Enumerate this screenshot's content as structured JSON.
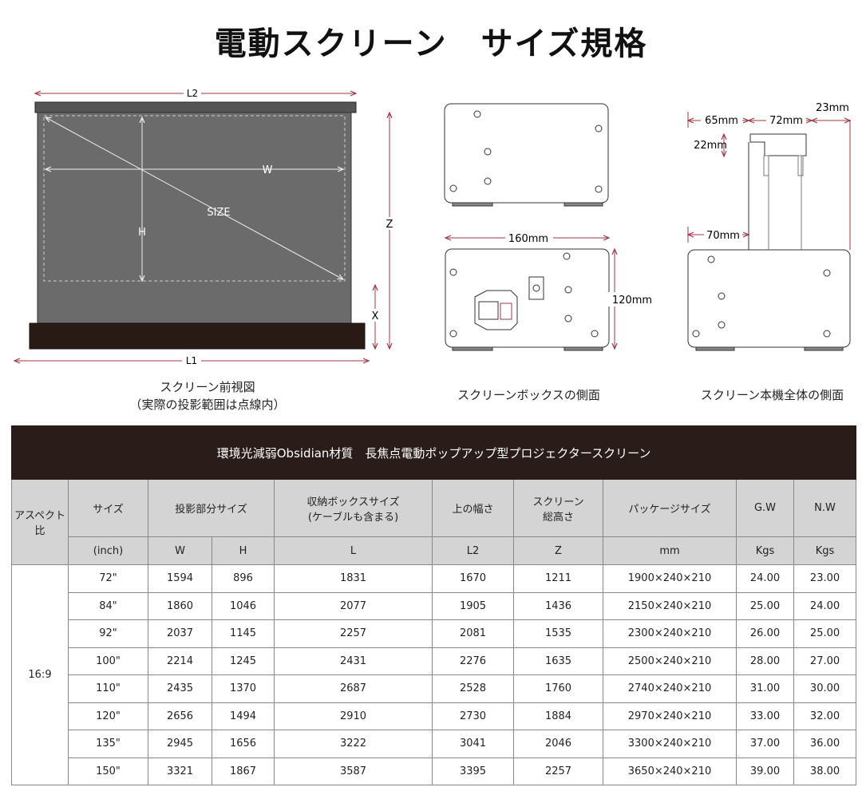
{
  "title": "電動スクリーン　サイズ規格",
  "front_view": {
    "labels": {
      "l2": "L2",
      "l1": "L1",
      "w": "W",
      "h": "H",
      "size": "SIZE",
      "z": "Z",
      "x": "X"
    },
    "caption_line1": "スクリーン前視図",
    "caption_line2": "（実際の投影範囲は点線内）"
  },
  "box_side": {
    "width_label": "160mm",
    "height_label": "120mm",
    "caption": "スクリーンボックスの側面"
  },
  "full_side": {
    "dim_65": "65mm",
    "dim_72": "72mm",
    "dim_23": "23mm",
    "dim_22": "22mm",
    "dim_70": "70mm",
    "caption": "スクリーン本機全体の側面"
  },
  "colors": {
    "dimension_line": "#a23a4a",
    "table_band": "#2a1c18",
    "header_bg": "#d4d4d4"
  },
  "table": {
    "band_title": "環境光減弱Obsidian材質　長焦点電動ポップアップ型プロジェクタースクリーン",
    "headers": {
      "aspect": "アスペクト比",
      "size": "サイズ",
      "projection": "投影部分サイズ",
      "box_line1": "収納ボックスサイズ",
      "box_line2": "(ケーブルも含まる)",
      "top_width": "上の幅さ",
      "height_line1": "スクリーン",
      "height_line2": "総高さ",
      "package": "パッケージサイズ",
      "gw": "G.W",
      "nw": "N.W"
    },
    "subheaders": [
      "(inch)",
      "W",
      "H",
      "L",
      "L2",
      "Z",
      "mm",
      "Kgs",
      "Kgs"
    ],
    "aspect_value": "16:9",
    "rows": [
      [
        "72\"",
        "1594",
        "896",
        "1831",
        "1670",
        "1211",
        "1900×240×210",
        "24.00",
        "23.00"
      ],
      [
        "84\"",
        "1860",
        "1046",
        "2077",
        "1905",
        "1436",
        "2150×240×210",
        "25.00",
        "24.00"
      ],
      [
        "92\"",
        "2037",
        "1145",
        "2257",
        "2081",
        "1535",
        "2300×240×210",
        "26.00",
        "25.00"
      ],
      [
        "100\"",
        "2214",
        "1245",
        "2431",
        "2276",
        "1635",
        "2500×240×210",
        "28.00",
        "27.00"
      ],
      [
        "110\"",
        "2435",
        "1370",
        "2687",
        "2528",
        "1760",
        "2740×240×210",
        "31.00",
        "30.00"
      ],
      [
        "120\"",
        "2656",
        "1494",
        "2910",
        "2730",
        "1884",
        "2970×240×210",
        "33.00",
        "32.00"
      ],
      [
        "135\"",
        "2945",
        "1656",
        "3222",
        "3041",
        "2046",
        "3300×240×210",
        "37.00",
        "36.00"
      ],
      [
        "150\"",
        "3321",
        "1867",
        "3587",
        "3395",
        "2257",
        "3650×240×210",
        "39.00",
        "38.00"
      ]
    ]
  }
}
